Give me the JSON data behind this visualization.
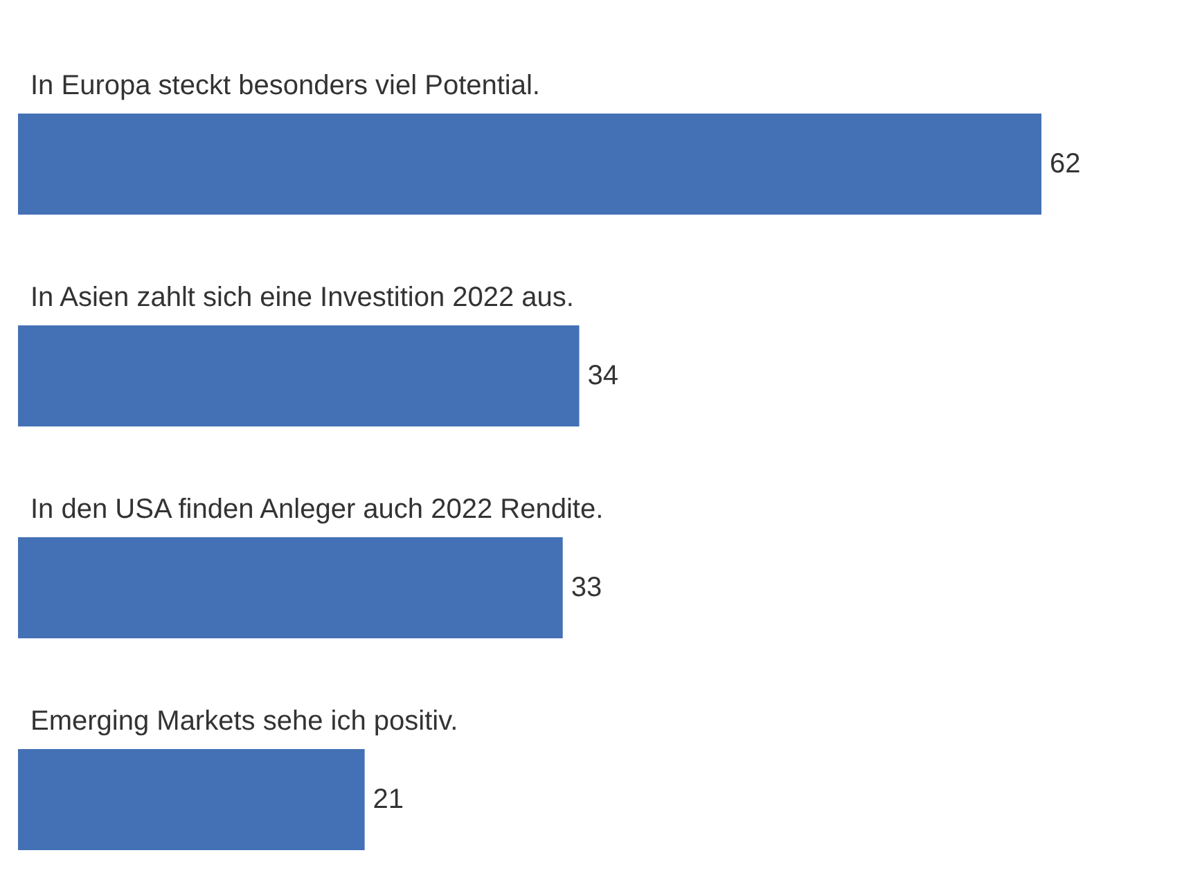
{
  "chart_data": {
    "type": "bar",
    "orientation": "horizontal",
    "categories": [
      "In Europa steckt besonders viel Potential.",
      "In Asien zahlt sich eine Investition 2022 aus.",
      "In den USA finden Anleger auch 2022 Rendite.",
      "Emerging Markets sehe ich positiv."
    ],
    "values": [
      62,
      34,
      33,
      21
    ],
    "color": "#4471b5",
    "data_labels": true
  }
}
